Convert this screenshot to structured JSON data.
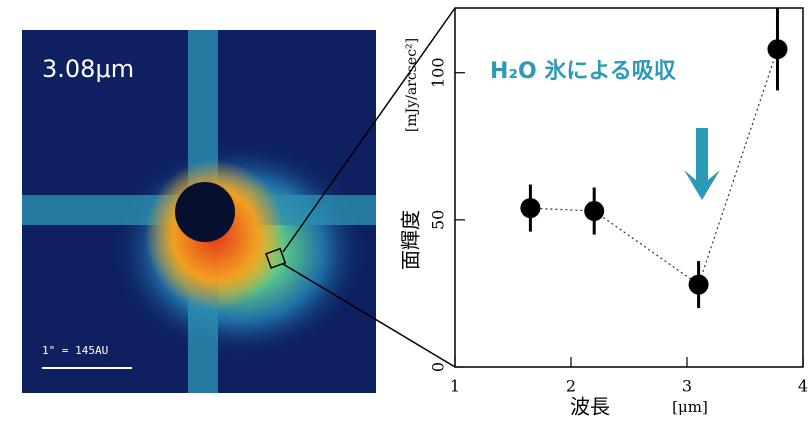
{
  "image": {
    "label": "3.08μm",
    "scale_label": "1\" = 145AU"
  },
  "chart_data": {
    "type": "scatter",
    "annotation": "H₂O 氷による吸収",
    "y_label": "面輝度",
    "y_unit": "[mJy/arcsec²]",
    "x_label": "波長",
    "x_unit": "[μm]",
    "x": [
      1.65,
      2.2,
      3.1,
      3.78
    ],
    "values": [
      54,
      53,
      28,
      108
    ],
    "errors": [
      8,
      8,
      8,
      14
    ],
    "color": "#000000",
    "annotation_color": "#2b9bb5",
    "xlim": [
      1,
      4
    ],
    "xticks": [
      1,
      2,
      3,
      4
    ],
    "ylim": [
      0,
      122
    ],
    "yticks": [
      0,
      50,
      100
    ]
  }
}
